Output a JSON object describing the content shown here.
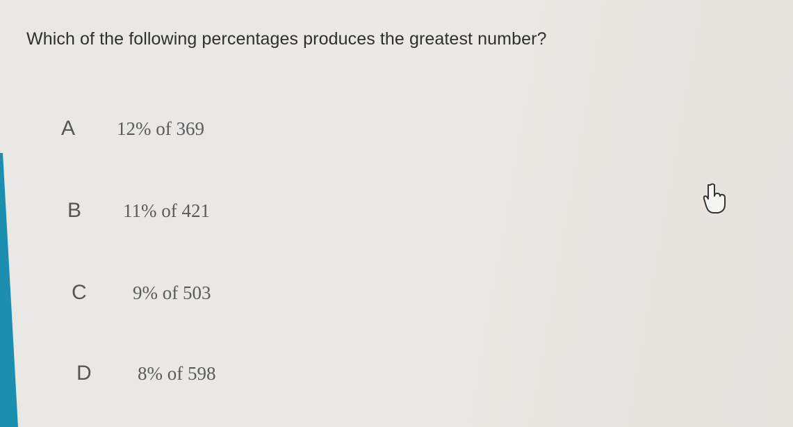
{
  "question": "Which of the following percentages produces the greatest number?",
  "options": [
    {
      "letter": "A",
      "text": "12% of 369"
    },
    {
      "letter": "B",
      "text": "11% of 421"
    },
    {
      "letter": "C",
      "text": "9% of 503"
    },
    {
      "letter": "D",
      "text": "8% of 598"
    }
  ],
  "colors": {
    "sidebar": "#1c8fb0",
    "background": "#e9e8e4"
  },
  "cursor_icon": "hand-pointer-icon"
}
